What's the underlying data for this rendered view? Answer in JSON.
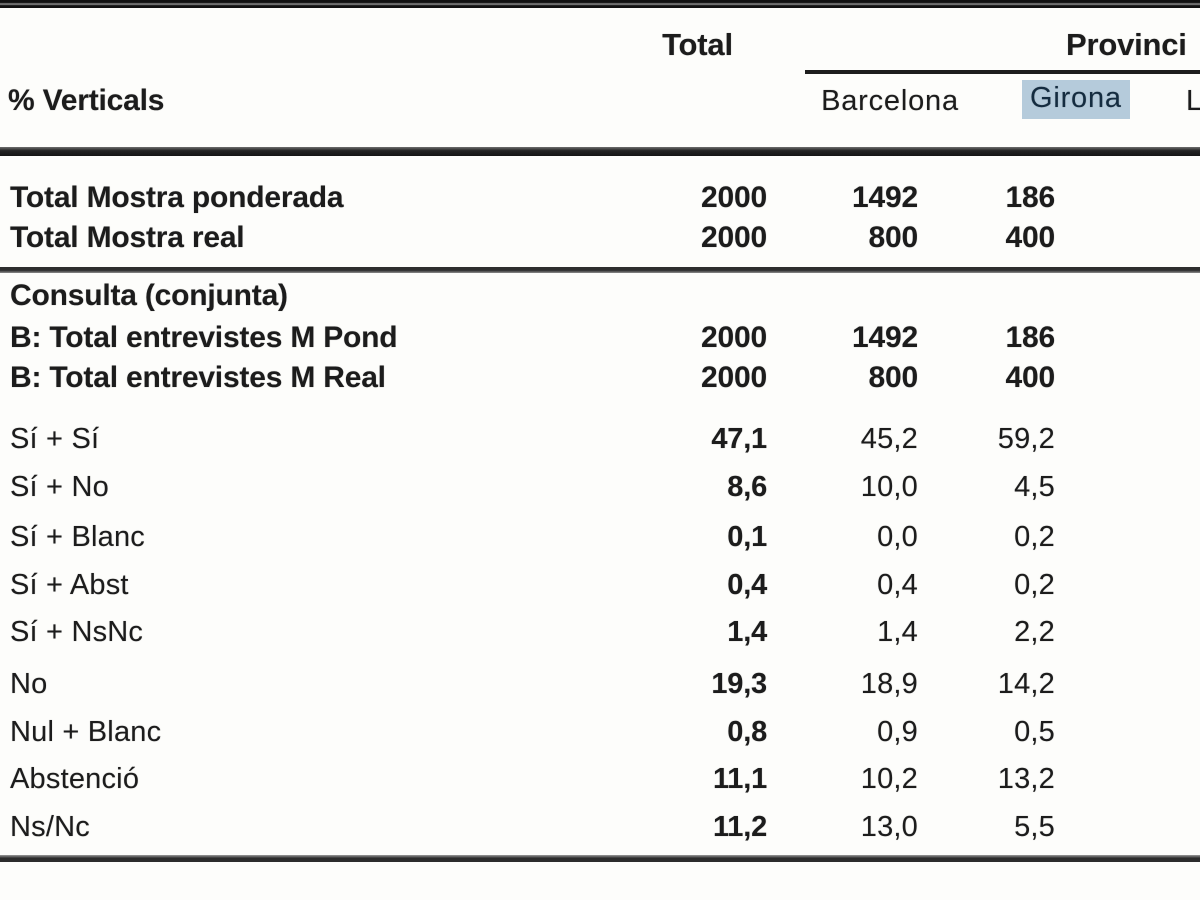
{
  "table": {
    "measure_label": "% Verticals",
    "columns": {
      "total": "Total",
      "province_group": "Provinci",
      "provinces": [
        "Barcelona",
        "Girona",
        "L"
      ]
    },
    "highlight": {
      "column": "Girona",
      "color": "#b5cbdb"
    },
    "rows": [
      {
        "label": "Total Mostra ponderada",
        "values": [
          "2000",
          "1492",
          "186"
        ],
        "emphasis": "all"
      },
      {
        "label": "Total Mostra real",
        "values": [
          "2000",
          "800",
          "400"
        ],
        "emphasis": "all"
      },
      {
        "label": "Consulta (conjunta)",
        "values": [
          "",
          "",
          ""
        ],
        "emphasis": "all"
      },
      {
        "label": "B: Total entrevistes M Pond",
        "values": [
          "2000",
          "1492",
          "186"
        ],
        "emphasis": "all"
      },
      {
        "label": "B: Total entrevistes M Real",
        "values": [
          "2000",
          "800",
          "400"
        ],
        "emphasis": "all"
      },
      {
        "label": "Sí + Sí",
        "values": [
          "47,1",
          "45,2",
          "59,2"
        ],
        "emphasis": "total"
      },
      {
        "label": "Sí + No",
        "values": [
          "8,6",
          "10,0",
          "4,5"
        ],
        "emphasis": "total"
      },
      {
        "label": "Sí + Blanc",
        "values": [
          "0,1",
          "0,0",
          "0,2"
        ],
        "emphasis": "total"
      },
      {
        "label": "Sí + Abst",
        "values": [
          "0,4",
          "0,4",
          "0,2"
        ],
        "emphasis": "total"
      },
      {
        "label": "Sí + NsNc",
        "values": [
          "1,4",
          "1,4",
          "2,2"
        ],
        "emphasis": "total"
      },
      {
        "label": "No",
        "values": [
          "19,3",
          "18,9",
          "14,2"
        ],
        "emphasis": "total"
      },
      {
        "label": "Nul + Blanc",
        "values": [
          "0,8",
          "0,9",
          "0,5"
        ],
        "emphasis": "total"
      },
      {
        "label": "Abstenció",
        "values": [
          "11,1",
          "10,2",
          "13,2"
        ],
        "emphasis": "total"
      },
      {
        "label": "Ns/Nc",
        "values": [
          "11,2",
          "13,0",
          "5,5"
        ],
        "emphasis": "total"
      }
    ]
  }
}
